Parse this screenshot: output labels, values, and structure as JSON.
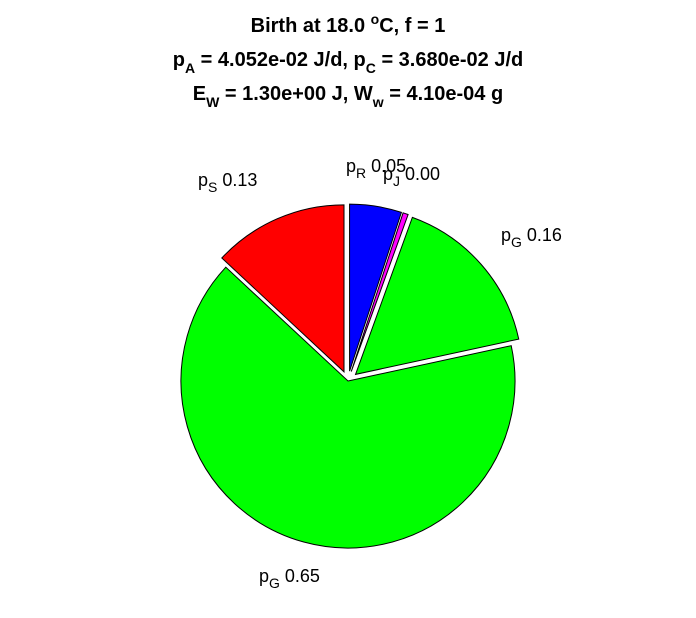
{
  "chart_data": {
    "type": "pie",
    "title": {
      "line1": {
        "text": "Birth at 18.0 ",
        "sup": "o",
        "rest": "C, f = 1"
      },
      "line2": [
        {
          "text": "p"
        },
        {
          "sub": "A"
        },
        {
          "text": " = 4.052e-02 J/d, p"
        },
        {
          "sub": "C"
        },
        {
          "text": " = 3.680e-02 J/d"
        }
      ],
      "line3": [
        {
          "text": "E"
        },
        {
          "sub": "W"
        },
        {
          "text": " = 1.30e+00 J, W"
        },
        {
          "sub": "w"
        },
        {
          "text": " = 4.10e-04 g"
        }
      ]
    },
    "slices": [
      {
        "symbol": "p",
        "subscript": "R",
        "value": 0.05,
        "value_label": "0.05",
        "color": "#0000ff",
        "exploded": true
      },
      {
        "symbol": "p",
        "subscript": "J",
        "value": 0.005,
        "value_label": "0.00",
        "color": "#ff00ff",
        "exploded": true
      },
      {
        "symbol": "p",
        "subscript": "G",
        "value": 0.16,
        "value_label": "0.16",
        "color": "#00ff00",
        "exploded": true
      },
      {
        "symbol": "p",
        "subscript": "G",
        "value": 0.65,
        "value_label": "0.65",
        "color": "#00ff00",
        "exploded": false
      },
      {
        "symbol": "p",
        "subscript": "S",
        "value": 0.13,
        "value_label": "0.13",
        "color": "#ff0000",
        "exploded": true
      }
    ]
  }
}
